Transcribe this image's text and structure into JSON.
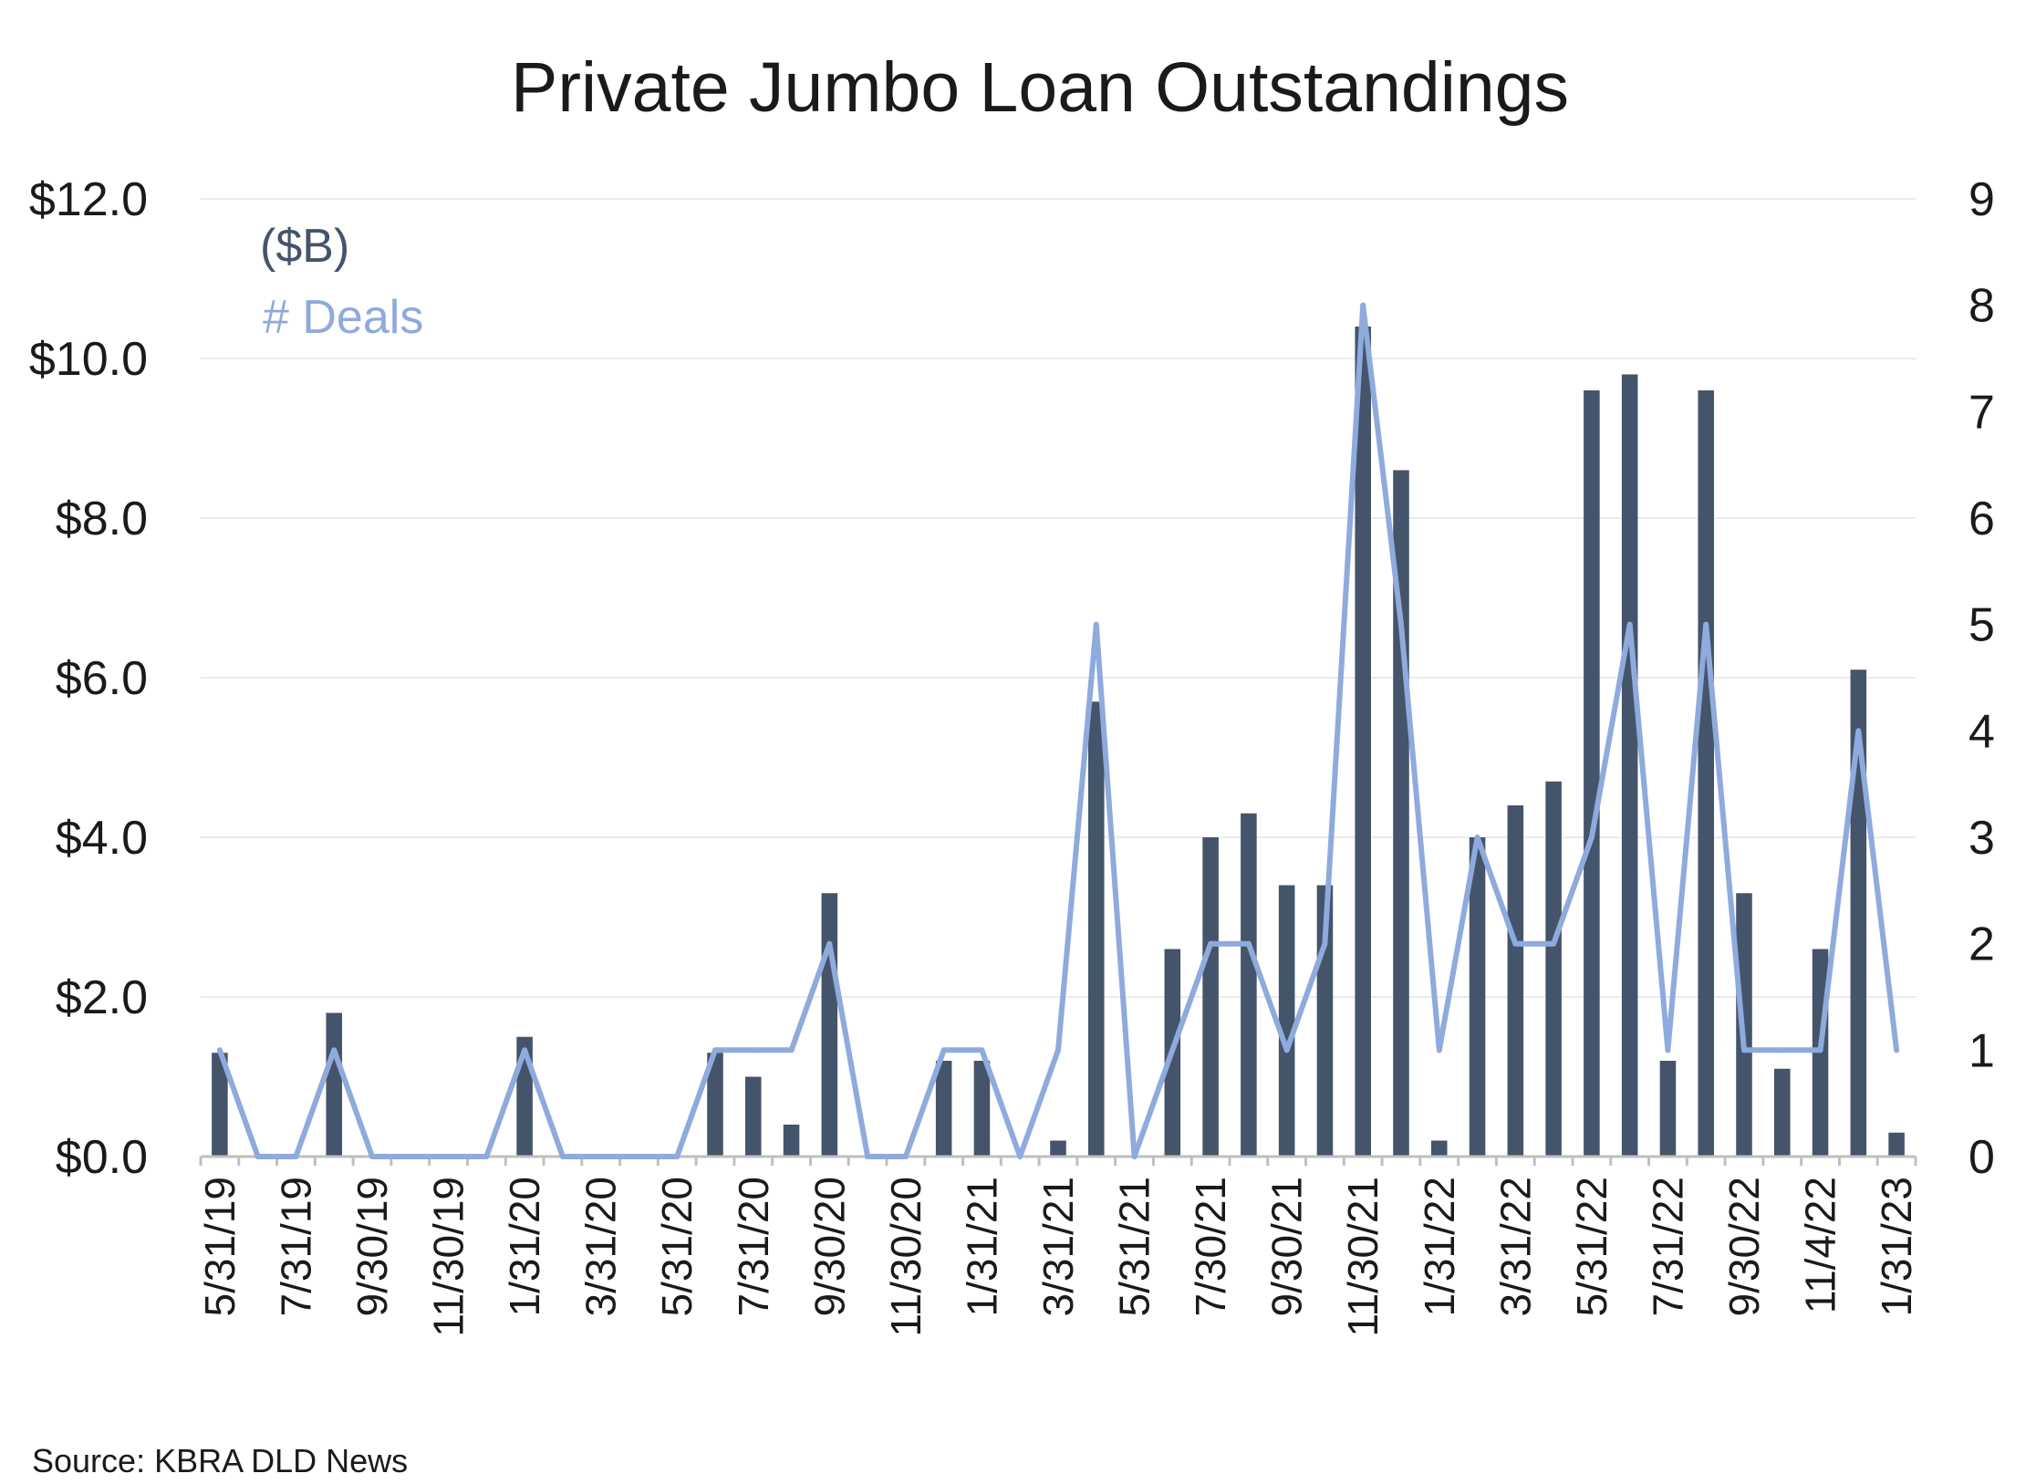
{
  "chart_data": {
    "type": "bar",
    "title": "Private Jumbo Loan Outstandings",
    "source": "Source: KBRA DLD News",
    "legend": [
      "($B)",
      "# Deals"
    ],
    "legend_position": "top-left",
    "grid": true,
    "y_left": {
      "min": 0,
      "max": 12,
      "ticks": [
        "$0.0",
        "$2.0",
        "$4.0",
        "$6.0",
        "$8.0",
        "$10.0",
        "$12.0"
      ]
    },
    "y_right": {
      "min": 0,
      "max": 9,
      "ticks": [
        "0",
        "1",
        "2",
        "3",
        "4",
        "5",
        "6",
        "7",
        "8",
        "9"
      ]
    },
    "x_tick_labels": [
      "5/31/19",
      "7/31/19",
      "9/30/19",
      "11/30/19",
      "1/31/20",
      "3/31/20",
      "5/31/20",
      "7/31/20",
      "9/30/20",
      "11/30/20",
      "1/31/21",
      "3/31/21",
      "5/31/21",
      "7/30/21",
      "9/30/21",
      "11/30/21",
      "1/31/22",
      "3/31/22",
      "5/31/22",
      "7/31/22",
      "9/30/22",
      "11/4/22",
      "1/31/23"
    ],
    "series": [
      {
        "name": "($B)",
        "type": "bar",
        "axis": "left",
        "color": "#44546a",
        "values": [
          1.3,
          0,
          0,
          1.8,
          0,
          0,
          0,
          0,
          1.5,
          0,
          0,
          0,
          0,
          1.3,
          1.0,
          0.4,
          3.3,
          0,
          0,
          1.2,
          1.2,
          0,
          0.2,
          5.7,
          0,
          2.6,
          4.0,
          4.3,
          3.4,
          3.4,
          10.4,
          8.6,
          0.2,
          4.0,
          4.4,
          4.7,
          9.6,
          9.8,
          1.2,
          9.6,
          3.3,
          1.1,
          2.6,
          6.1,
          0.3
        ]
      },
      {
        "name": "# Deals",
        "type": "line",
        "axis": "right",
        "color": "#8faadc",
        "values": [
          1,
          0,
          0,
          1,
          0,
          0,
          0,
          0,
          1,
          0,
          0,
          0,
          0,
          1,
          1,
          1,
          2,
          0,
          0,
          1,
          1,
          0,
          1,
          5,
          0,
          1,
          2,
          2,
          1,
          2,
          8,
          5,
          1,
          3,
          2,
          2,
          3,
          5,
          1,
          5,
          1,
          1,
          1,
          4,
          1
        ]
      }
    ]
  }
}
